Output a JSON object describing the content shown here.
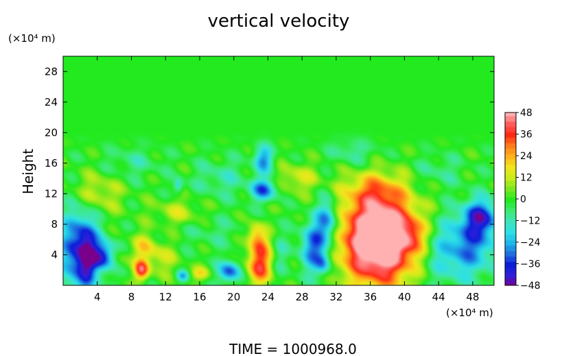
{
  "chart_data": {
    "type": "heatmap",
    "title": "vertical velocity",
    "footer": "TIME  =  1000968.0",
    "xlabel": "",
    "ylabel": "Height",
    "x_unit": "(×10⁴ m)",
    "y_unit": "(×10⁴ m)",
    "xlim": [
      0,
      50.5
    ],
    "ylim": [
      0,
      30
    ],
    "x_ticks": [
      4,
      8,
      12,
      16,
      20,
      24,
      28,
      32,
      36,
      40,
      44,
      48
    ],
    "y_ticks": [
      4,
      8,
      12,
      16,
      20,
      24,
      28
    ],
    "colorbar": {
      "min": -48,
      "max": 48,
      "tick_values": [
        48,
        36,
        24,
        12,
        0,
        -12,
        -24,
        -36,
        -48
      ],
      "tick_labels": [
        "48",
        "36",
        "24",
        "12",
        "0",
        "−12",
        "−24",
        "−36",
        "−48"
      ]
    },
    "colormap_stops": [
      {
        "value": -48,
        "color": "#7a008c"
      },
      {
        "value": -42,
        "color": "#2f1fd9"
      },
      {
        "value": -36,
        "color": "#0a1ed8"
      },
      {
        "value": -30,
        "color": "#1f6fe0"
      },
      {
        "value": -24,
        "color": "#1db8e8"
      },
      {
        "value": -18,
        "color": "#2ee0e6"
      },
      {
        "value": -12,
        "color": "#3de6b8"
      },
      {
        "value": -6,
        "color": "#3cea6e"
      },
      {
        "value": 0,
        "color": "#22ea1e"
      },
      {
        "value": 6,
        "color": "#7ae81e"
      },
      {
        "value": 12,
        "color": "#c8ec1a"
      },
      {
        "value": 18,
        "color": "#f0e61c"
      },
      {
        "value": 24,
        "color": "#ffb21a"
      },
      {
        "value": 30,
        "color": "#ff7a1a"
      },
      {
        "value": 36,
        "color": "#ff2a14"
      },
      {
        "value": 42,
        "color": "#ff5b5b"
      },
      {
        "value": 48,
        "color": "#ffb0b0"
      }
    ],
    "features": [
      {
        "x": 2.0,
        "y": 4.5,
        "sx": 1.6,
        "sy": 3.8,
        "amp": -42
      },
      {
        "x": 2.8,
        "y": 3.5,
        "sx": 0.6,
        "sy": 2.5,
        "amp": -14
      },
      {
        "x": 4.8,
        "y": 3.8,
        "sx": 1.1,
        "sy": 1.3,
        "amp": -32
      },
      {
        "x": 6.5,
        "y": 3.5,
        "sx": 0.9,
        "sy": 1.0,
        "amp": 10
      },
      {
        "x": 9.2,
        "y": 2.0,
        "sx": 0.6,
        "sy": 0.9,
        "amp": 38
      },
      {
        "x": 9.5,
        "y": 5.0,
        "sx": 1.0,
        "sy": 1.3,
        "amp": 16
      },
      {
        "x": 11.5,
        "y": 3.5,
        "sx": 1.3,
        "sy": 1.5,
        "amp": 12
      },
      {
        "x": 14.0,
        "y": 1.2,
        "sx": 0.5,
        "sy": 0.5,
        "amp": -22
      },
      {
        "x": 16.0,
        "y": 1.5,
        "sx": 0.8,
        "sy": 0.6,
        "amp": 16
      },
      {
        "x": 17.5,
        "y": 7.0,
        "sx": 3.0,
        "sy": 1.5,
        "amp": -6
      },
      {
        "x": 19.5,
        "y": 1.8,
        "sx": 0.9,
        "sy": 1.0,
        "amp": -33
      },
      {
        "x": 22.5,
        "y": 7.0,
        "sx": 0.7,
        "sy": 1.0,
        "amp": 16
      },
      {
        "x": 23.0,
        "y": 2.6,
        "sx": 1.0,
        "sy": 1.8,
        "amp": 36
      },
      {
        "x": 23.0,
        "y": 5.5,
        "sx": 0.9,
        "sy": 1.2,
        "amp": 18
      },
      {
        "x": 23.5,
        "y": 12.5,
        "sx": 1.1,
        "sy": 1.0,
        "amp": -30
      },
      {
        "x": 23.5,
        "y": 16.5,
        "sx": 0.8,
        "sy": 1.3,
        "amp": -26
      },
      {
        "x": 13.5,
        "y": 13.0,
        "sx": 0.4,
        "sy": 0.7,
        "amp": -18
      },
      {
        "x": 13.5,
        "y": 9.5,
        "sx": 2.0,
        "sy": 1.2,
        "amp": 12
      },
      {
        "x": 27.5,
        "y": 14.0,
        "sx": 1.6,
        "sy": 1.3,
        "amp": 14
      },
      {
        "x": 29.5,
        "y": 5.0,
        "sx": 1.2,
        "sy": 2.4,
        "amp": -32
      },
      {
        "x": 31.0,
        "y": 8.5,
        "sx": 0.9,
        "sy": 2.0,
        "amp": -28
      },
      {
        "x": 30.5,
        "y": 2.8,
        "sx": 0.6,
        "sy": 1.0,
        "amp": -18
      },
      {
        "x": 37.0,
        "y": 6.0,
        "sx": 3.0,
        "sy": 4.0,
        "amp": 72
      },
      {
        "x": 36.5,
        "y": 12.5,
        "sx": 2.5,
        "sy": 1.6,
        "amp": 16
      },
      {
        "x": 41.0,
        "y": 6.5,
        "sx": 1.0,
        "sy": 1.6,
        "amp": 16
      },
      {
        "x": 44.5,
        "y": 4.0,
        "sx": 2.0,
        "sy": 3.0,
        "amp": -14
      },
      {
        "x": 48.0,
        "y": 5.5,
        "sx": 2.2,
        "sy": 3.0,
        "amp": -26
      },
      {
        "x": 49.0,
        "y": 9.0,
        "sx": 1.4,
        "sy": 1.6,
        "amp": -30
      },
      {
        "x": 4.0,
        "y": 12.0,
        "sx": 2.0,
        "sy": 2.0,
        "amp": 14
      },
      {
        "x": 8.0,
        "y": 16.0,
        "sx": 2.5,
        "sy": 1.5,
        "amp": -8
      },
      {
        "x": 18.5,
        "y": 14.0,
        "sx": 2.2,
        "sy": 1.8,
        "amp": -10
      },
      {
        "x": 34.0,
        "y": 17.5,
        "sx": 2.0,
        "sy": 1.2,
        "amp": -10
      },
      {
        "x": 44.0,
        "y": 15.0,
        "sx": 2.0,
        "sy": 1.5,
        "amp": -8
      },
      {
        "x": 25.5,
        "y": 4.0,
        "sx": 0.8,
        "sy": 2.0,
        "amp": -8
      }
    ]
  }
}
